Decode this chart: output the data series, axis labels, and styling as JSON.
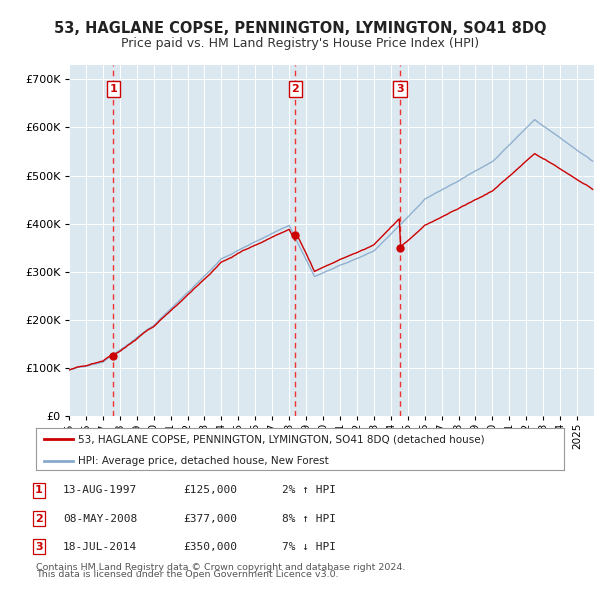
{
  "title": "53, HAGLANE COPSE, PENNINGTON, LYMINGTON, SO41 8DQ",
  "subtitle": "Price paid vs. HM Land Registry's House Price Index (HPI)",
  "ylim": [
    0,
    730000
  ],
  "yticks": [
    0,
    100000,
    200000,
    300000,
    400000,
    500000,
    600000,
    700000
  ],
  "ytick_labels": [
    "£0",
    "£100K",
    "£200K",
    "£300K",
    "£400K",
    "£500K",
    "£600K",
    "£700K"
  ],
  "xmin": 1995,
  "xmax": 2026,
  "sale_events": [
    {
      "num": 1,
      "date": "13-AUG-1997",
      "price": 125000,
      "year": 1997.62,
      "label": "2% ↑ HPI"
    },
    {
      "num": 2,
      "date": "08-MAY-2008",
      "price": 377000,
      "year": 2008.36,
      "label": "8% ↑ HPI"
    },
    {
      "num": 3,
      "date": "18-JUL-2014",
      "price": 350000,
      "year": 2014.54,
      "label": "7% ↓ HPI"
    }
  ],
  "legend_line1": "53, HAGLANE COPSE, PENNINGTON, LYMINGTON, SO41 8DQ (detached house)",
  "legend_line2": "HPI: Average price, detached house, New Forest",
  "footnote1": "Contains HM Land Registry data © Crown copyright and database right 2024.",
  "footnote2": "This data is licensed under the Open Government Licence v3.0.",
  "red_color": "#cc0000",
  "blue_color": "#88aacc",
  "bg_color": "#dce8f0",
  "dashed_color": "#ee3333"
}
